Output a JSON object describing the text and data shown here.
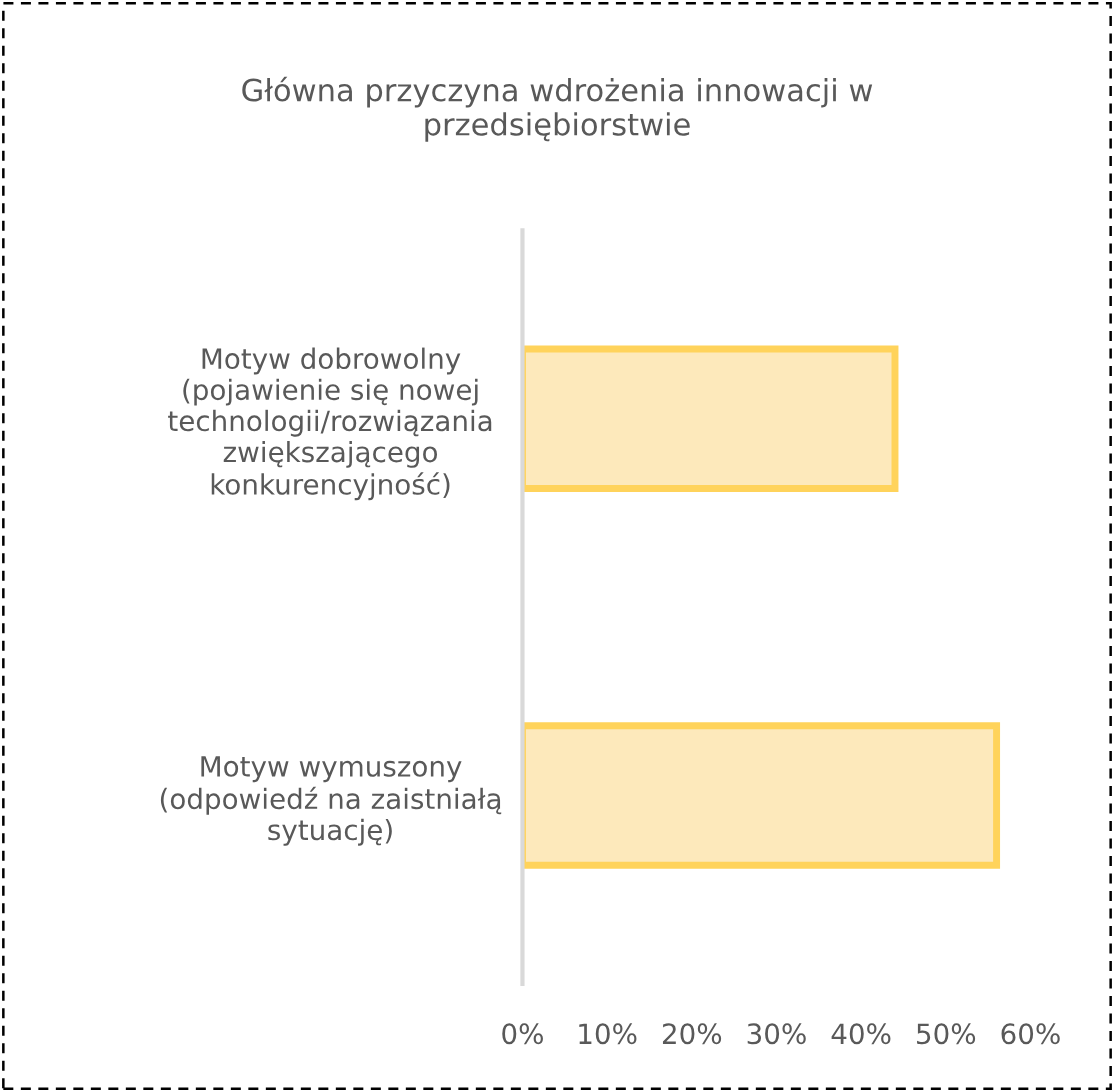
{
  "chart_data": {
    "type": "bar",
    "orientation": "horizontal",
    "title": "Główna przyczyna wdrożenia innowacji w\nprzedsiębiorstwie",
    "categories": [
      "Motyw dobrowolny\n(pojawienie się nowej\ntechnologii/rozwiązania\nzwiększającego\nkonkurencyjność)",
      "Motyw wymuszony\n(odpowiedź na zaistniałą\nsytuację)"
    ],
    "values": [
      44,
      56
    ],
    "color": "#fde9bb",
    "xlim": [
      0,
      60
    ],
    "xticks": [
      {
        "value": 0,
        "label": "0%"
      },
      {
        "value": 10,
        "label": "10%"
      },
      {
        "value": 20,
        "label": "20%"
      },
      {
        "value": 30,
        "label": "30%"
      },
      {
        "value": 40,
        "label": "40%"
      },
      {
        "value": 50,
        "label": "50%"
      },
      {
        "value": 60,
        "label": "60%"
      }
    ],
    "grid": false,
    "legend": false
  }
}
